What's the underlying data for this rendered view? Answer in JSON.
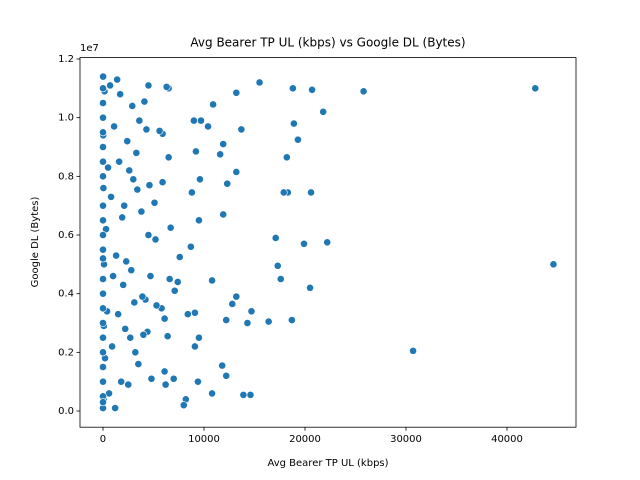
{
  "chart_data": {
    "type": "scatter",
    "title": "Avg Bearer TP UL (kbps) vs Google DL (Bytes)",
    "x_label": "Avg Bearer TP UL (kbps)",
    "y_label": "Google DL (Bytes)",
    "y_offset_label": "1e7",
    "color": "#1f77b4",
    "xlim": [
      -2277,
      46832
    ],
    "ylim": [
      -552000,
      12048000
    ],
    "xticks": [
      0,
      10000,
      20000,
      30000,
      40000
    ],
    "yticks": [
      {
        "value": 0,
        "label": "0.0"
      },
      {
        "value": 2000000,
        "label": "0.2"
      },
      {
        "value": 4000000,
        "label": "0.4"
      },
      {
        "value": 6000000,
        "label": "0.6"
      },
      {
        "value": 8000000,
        "label": "0.8"
      },
      {
        "value": 10000000,
        "label": "1.0"
      },
      {
        "value": 12000000,
        "label": "1.2"
      }
    ],
    "x": [
      42800,
      44600,
      30700,
      25800,
      22200,
      21800,
      20700,
      20600,
      20500,
      19900,
      19300,
      18900,
      18800,
      18700,
      18300,
      18200,
      17900,
      17600,
      17300,
      17100,
      16400,
      15500,
      14700,
      14600,
      14300,
      13900,
      13700,
      13200,
      13200,
      13200,
      12800,
      12300,
      12200,
      12200,
      11900,
      11900,
      11800,
      11600,
      10900,
      10800,
      10800,
      10400,
      9700,
      9600,
      9500,
      9500,
      9400,
      9200,
      9100,
      9100,
      9000,
      8800,
      8700,
      8400,
      8200,
      8000,
      7600,
      7400,
      7100,
      7000,
      6700,
      6600,
      6500,
      6500,
      6400,
      6300,
      6200,
      6100,
      6100,
      5900,
      5900,
      5800,
      5600,
      5300,
      5200,
      5100,
      4800,
      4700,
      4600,
      4500,
      4500,
      4400,
      4300,
      4200,
      4100,
      4000,
      3900,
      3800,
      3600,
      3500,
      3400,
      3300,
      3200,
      3100,
      3000,
      2900,
      2800,
      2700,
      2600,
      2500,
      2400,
      2300,
      2200,
      2100,
      2000,
      1900,
      1800,
      1700,
      1600,
      1500,
      1400,
      1300,
      1200,
      1100,
      1000,
      900,
      800,
      700,
      600,
      500,
      400,
      300,
      200,
      150,
      100,
      80,
      60,
      40,
      20,
      10,
      0,
      0,
      0,
      0,
      0,
      0,
      0,
      0,
      0,
      0,
      0,
      0,
      0,
      0,
      0,
      0,
      0,
      0,
      0,
      0,
      0,
      0,
      0
    ],
    "values": [
      11000000,
      5000000,
      2050000,
      10900000,
      5750000,
      10200000,
      10950000,
      7450000,
      4200000,
      5700000,
      9250000,
      9800000,
      11000000,
      3100000,
      7450000,
      8650000,
      7450000,
      4500000,
      4950000,
      5900000,
      3050000,
      11200000,
      3400000,
      550000,
      3000000,
      550000,
      9600000,
      10850000,
      8150000,
      3900000,
      3650000,
      7750000,
      3100000,
      1200000,
      9100000,
      6700000,
      1550000,
      8750000,
      10450000,
      4450000,
      600000,
      9700000,
      9900000,
      7900000,
      6500000,
      2500000,
      1000000,
      8850000,
      3350000,
      2200000,
      9900000,
      7450000,
      5600000,
      3300000,
      400000,
      200000,
      5250000,
      4400000,
      4100000,
      1100000,
      6250000,
      4500000,
      11000000,
      8650000,
      2550000,
      11050000,
      900000,
      1350000,
      3150000,
      9450000,
      7800000,
      3500000,
      9550000,
      3600000,
      5850000,
      7100000,
      1100000,
      4600000,
      7700000,
      6000000,
      11100000,
      2700000,
      9600000,
      3800000,
      10550000,
      2600000,
      3900000,
      6800000,
      9900000,
      1600000,
      7550000,
      8800000,
      2000000,
      3700000,
      7900000,
      10400000,
      4800000,
      2500000,
      8200000,
      900000,
      9200000,
      5100000,
      2800000,
      7000000,
      4300000,
      6600000,
      1000000,
      10800000,
      8500000,
      3300000,
      11300000,
      5300000,
      100000,
      9700000,
      4600000,
      2200000,
      7300000,
      11100000,
      600000,
      8300000,
      3400000,
      6200000,
      1800000,
      10900000,
      5000000,
      2900000,
      400000,
      7600000,
      9400000,
      11400000,
      100000,
      500000,
      1000000,
      1500000,
      2000000,
      2500000,
      3000000,
      3500000,
      4000000,
      4500000,
      5500000,
      6000000,
      6500000,
      7000000,
      8000000,
      8500000,
      9000000,
      9500000,
      10000000,
      10500000,
      11000000,
      300000,
      5200000
    ]
  }
}
